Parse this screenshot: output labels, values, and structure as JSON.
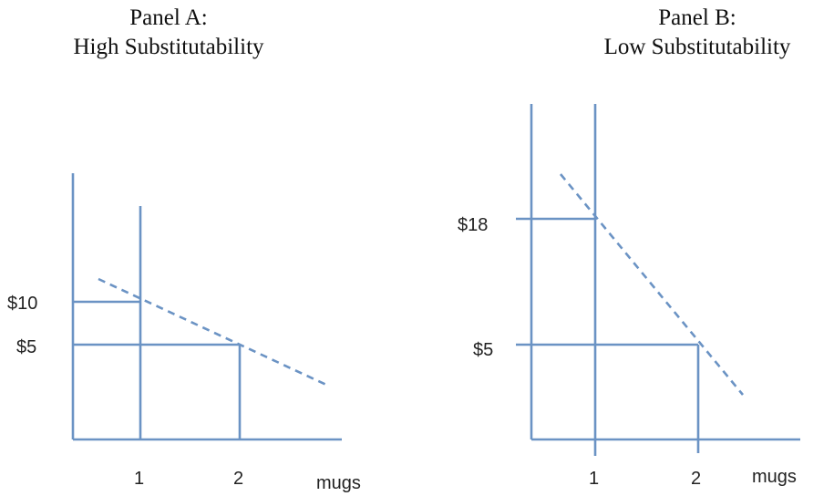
{
  "panel_a": {
    "title_line1": "Panel A:",
    "title_line2": "High Substitutability",
    "y_labels": [
      "$10",
      "$5"
    ],
    "x_labels": [
      "1",
      "2"
    ],
    "x_unit": "mugs"
  },
  "panel_b": {
    "title_line1": "Panel B:",
    "title_line2": "Low Substitutability",
    "y_labels": [
      "$18",
      "$5"
    ],
    "x_labels": [
      "1",
      "2"
    ],
    "x_unit": "mugs"
  },
  "colors": {
    "line": "#6b93c4",
    "text": "#222222"
  }
}
